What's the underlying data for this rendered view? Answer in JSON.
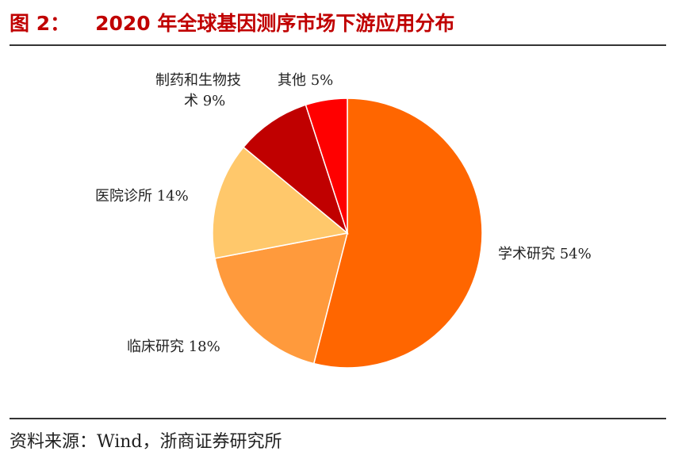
{
  "header": {
    "figure_label": "图 2：",
    "title": "2020 年全球基因测序市场下游应用分布"
  },
  "footer": {
    "source": "资料来源：Wind，浙商证券研究所"
  },
  "chart_data": {
    "type": "pie",
    "title": "2020 年全球基因测序市场下游应用分布",
    "legend": "none",
    "slices": [
      {
        "name": "学术研究",
        "value": 54,
        "label": "学术研究 54%",
        "color": "#ff6600"
      },
      {
        "name": "临床研究",
        "value": 18,
        "label": "临床研究 18%",
        "color": "#ff9a3c"
      },
      {
        "name": "医院诊所",
        "value": 14,
        "label": "医院诊所 14%",
        "color": "#ffc86b"
      },
      {
        "name": "制药和生物技术",
        "value": 9,
        "label_lines": [
          "制药和生物技",
          "术 9%"
        ],
        "color": "#c00000"
      },
      {
        "name": "其他",
        "value": 5,
        "label": "其他 5%",
        "color": "#ff0000"
      }
    ]
  }
}
